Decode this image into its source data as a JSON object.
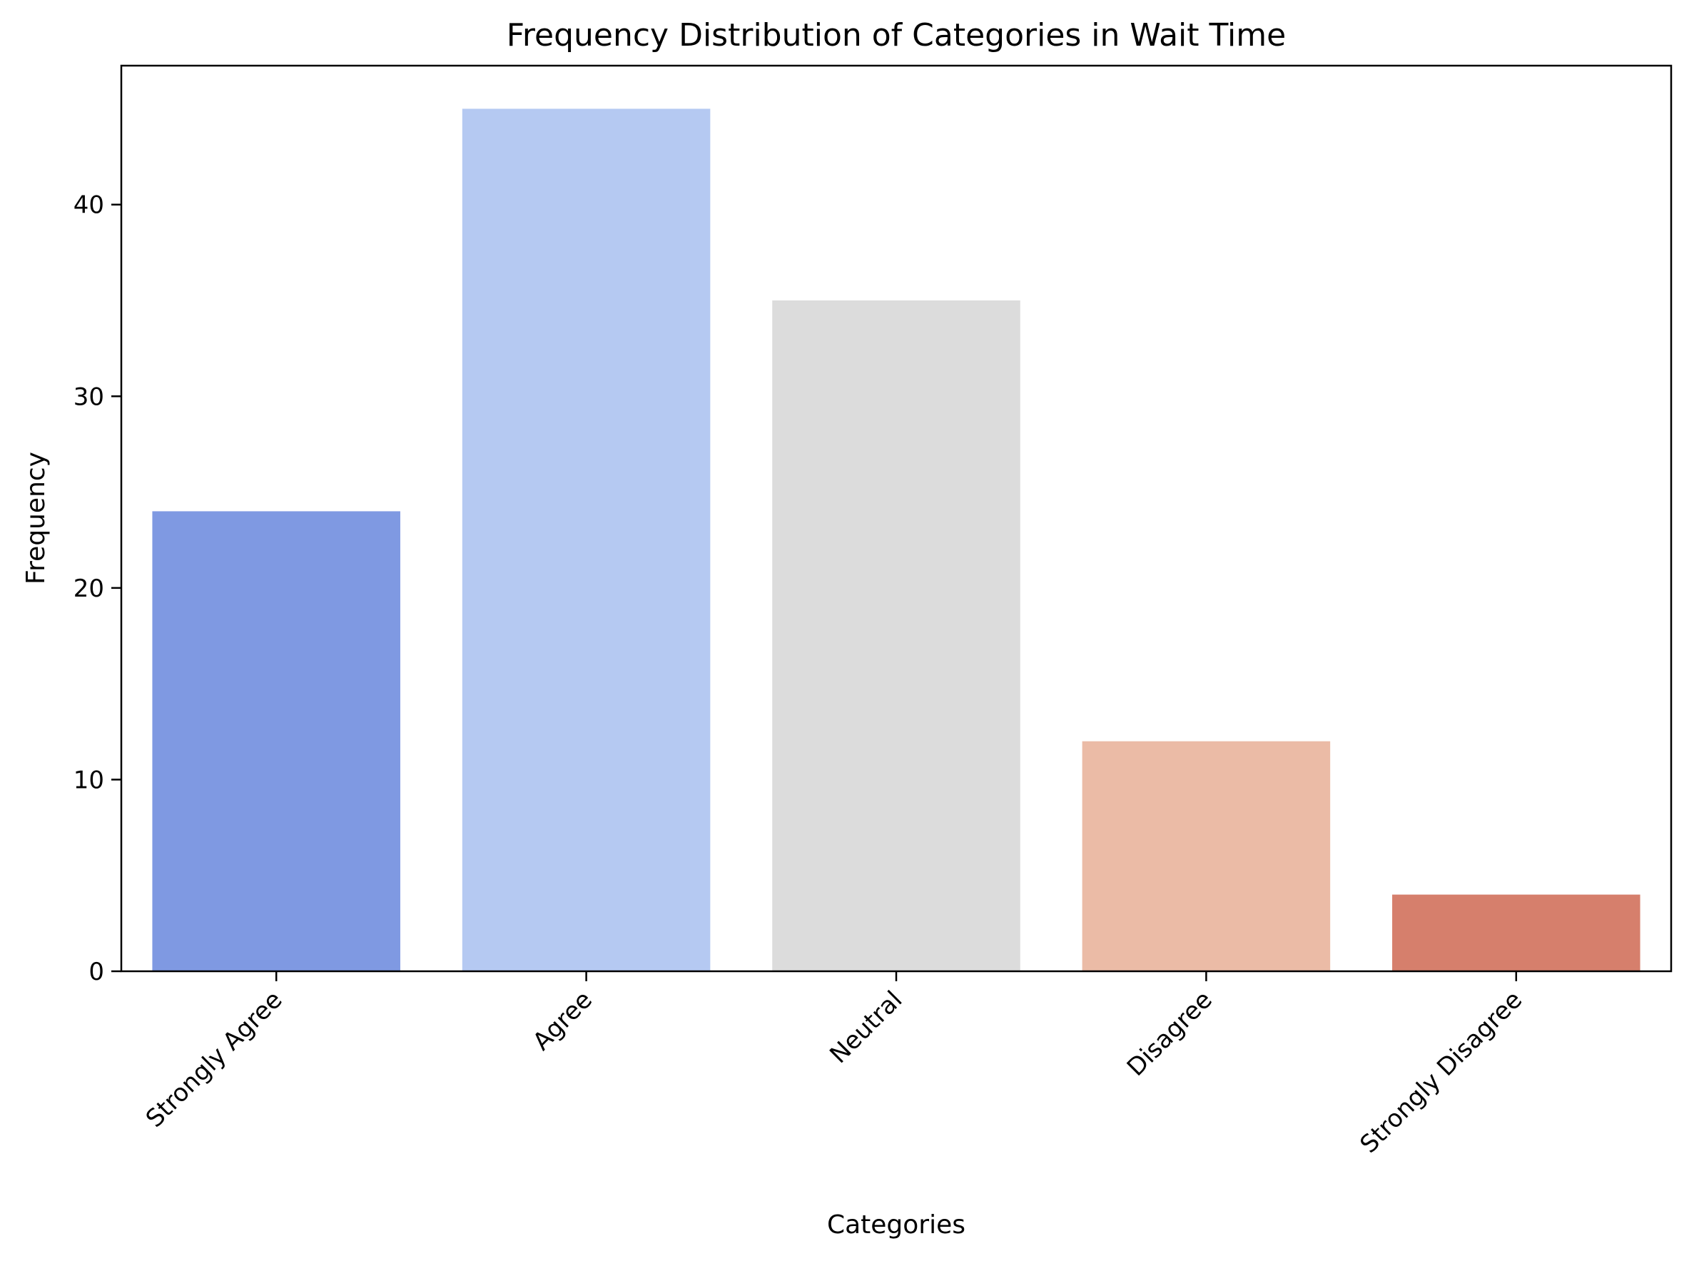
{
  "chart_data": {
    "type": "bar",
    "title": "Frequency Distribution of Categories in Wait Time",
    "xlabel": "Categories",
    "ylabel": "Frequency",
    "categories": [
      "Strongly Agree",
      "Agree",
      "Neutral",
      "Disagree",
      "Strongly Disagree"
    ],
    "values": [
      24,
      45,
      35,
      12,
      4
    ],
    "colors": [
      "#7f99e2",
      "#b5c9f2",
      "#dcdcdc",
      "#ebbba6",
      "#d67f6c"
    ],
    "ylim": [
      0,
      47.25
    ],
    "yticks": [
      0,
      10,
      20,
      30,
      40
    ],
    "grid": false,
    "legend": "none"
  }
}
